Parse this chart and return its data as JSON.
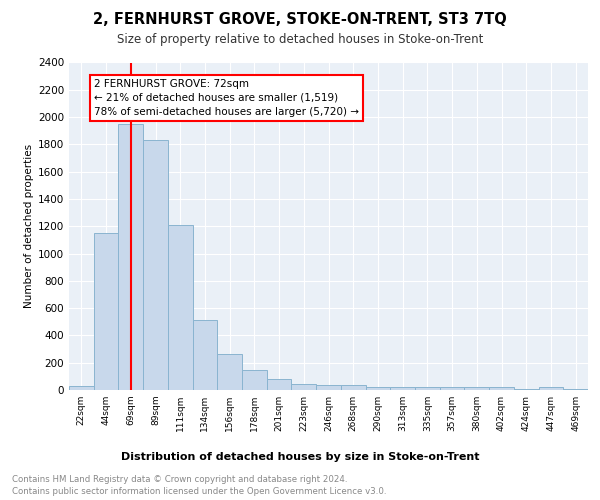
{
  "title": "2, FERNHURST GROVE, STOKE-ON-TRENT, ST3 7TQ",
  "subtitle": "Size of property relative to detached houses in Stoke-on-Trent",
  "xlabel": "Distribution of detached houses by size in Stoke-on-Trent",
  "ylabel": "Number of detached properties",
  "bin_labels": [
    "22sqm",
    "44sqm",
    "69sqm",
    "89sqm",
    "111sqm",
    "134sqm",
    "156sqm",
    "178sqm",
    "201sqm",
    "223sqm",
    "246sqm",
    "268sqm",
    "290sqm",
    "313sqm",
    "335sqm",
    "357sqm",
    "380sqm",
    "402sqm",
    "424sqm",
    "447sqm",
    "469sqm"
  ],
  "bar_values": [
    30,
    1150,
    1950,
    1830,
    1210,
    510,
    265,
    148,
    80,
    45,
    40,
    35,
    20,
    20,
    20,
    20,
    20,
    20,
    5,
    20,
    5
  ],
  "bar_color": "#c8d8eb",
  "bar_edgecolor": "#8ab4d0",
  "vline_color": "red",
  "vline_pos": 2.0,
  "annotation_text": "2 FERNHURST GROVE: 72sqm\n← 21% of detached houses are smaller (1,519)\n78% of semi-detached houses are larger (5,720) →",
  "annotation_box_color": "white",
  "annotation_box_edgecolor": "red",
  "ylim": [
    0,
    2400
  ],
  "yticks": [
    0,
    200,
    400,
    600,
    800,
    1000,
    1200,
    1400,
    1600,
    1800,
    2000,
    2200,
    2400
  ],
  "footer_line1": "Contains HM Land Registry data © Crown copyright and database right 2024.",
  "footer_line2": "Contains public sector information licensed under the Open Government Licence v3.0.",
  "plot_bg_color": "#eaf0f7",
  "grid_color": "white"
}
